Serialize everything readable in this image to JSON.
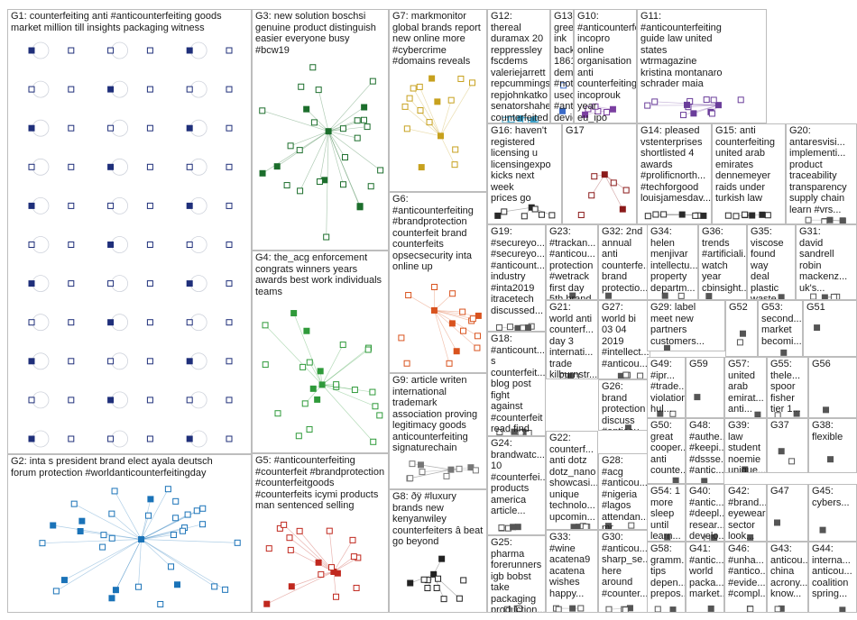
{
  "groups": [
    {
      "id": "G1",
      "text": "G1: counterfeiting anti #anticounterfeiting goods\nmarket million till insights packaging witness",
      "color": "#1f2f7a"
    },
    {
      "id": "G2",
      "text": "G2: inta s president brand elect ayala deutsch\nforum protection #worldanticounterfeitingday",
      "color": "#1a73b8"
    },
    {
      "id": "G3",
      "text": "G3: new solution boschsi\ngenuine product distinguish\neasier everyone busy\n#bcw19",
      "color": "#1c6e2c"
    },
    {
      "id": "G4",
      "text": "G4: the_acg enforcement\ncongrats winners years\nawards best work individuals\nteams",
      "color": "#2f9a3a"
    },
    {
      "id": "G5",
      "text": "G5: #anticounterfeiting\n#counterfeit #brandprotection\n#counterfeitgoods\n#counterfeits icymi products\nman sentenced selling",
      "color": "#c0281e"
    },
    {
      "id": "G6",
      "text": "G6:\n#anticounterfeiting\n#brandprotection\ncounterfeit brand\ncounterfeits\nopsecsecurity inta\nonline up",
      "color": "#d9531e"
    },
    {
      "id": "G7",
      "text": "G7: markmonitor\nglobal brands report\nnew online more\n#cybercrime\n#domains reveals",
      "color": "#c7a11e"
    },
    {
      "id": "G8",
      "text": "G8: ðÿ #luxury\nbrands new\nkenyanwiley\ncounterfeiters â beat\ngo beyond",
      "color": "#222222"
    },
    {
      "id": "G9",
      "text": "G9: article writen\ninternational\ntrademark\nassociation proving\nlegitimacy goods\nanticounterfeiting\nsignaturechain",
      "color": "#777777"
    },
    {
      "id": "G10",
      "text": "G10:\n#anticounterfeiting\nincopro online\norganisation anti\ncounterfeiting\nincoprouk year\neu_ipo announce",
      "color": "#7b3fa0"
    },
    {
      "id": "G11",
      "text": "G11:\n#anticounterfeiting\nguide law united\nstates\nwtrmagazine\nkristina montanaro\nschrader maia",
      "color": "#6a3d9a"
    },
    {
      "id": "G12",
      "text": "G12:\nthereal duramax 20\nreppressley\nfscdems\nvaleriejarrett\nrepcummings\nrepjohnkatko\nsenatorshaheen\ncounterfeited bill",
      "color": "#3aa0c8"
    },
    {
      "id": "G13",
      "text": "G13: green ink\nback 1861 demand\n#notes used\n#anticounterfeiting\ndevice photograph",
      "color": "#3a6bc8"
    },
    {
      "id": "G14",
      "text": "G14: pleased\nvstenterprises\nshortlisted 4\nawards\n#prolificnorth...\n#techforgood\nlouisjamesdav...",
      "color": "#2b2b2b"
    },
    {
      "id": "G15",
      "text": "G15: anti\ncounterfeiting\nunited arab\nemirates\ndennemeyer\nraids under\nturkish law",
      "color": "#2b2b2b"
    },
    {
      "id": "G16",
      "text": "G16: haven't\nregistered\nlicensing u\nlicensingexpo\nkicks next week\nprices go",
      "color": "#2b2b2b"
    },
    {
      "id": "G17",
      "text": "G17",
      "color": "#8b1a1a"
    },
    {
      "id": "G18",
      "text": "G18:\n#anticount...\ns\ncounterfeit...\nblog post\nfight against\n#counterfeit\nread find",
      "color": "#555555"
    },
    {
      "id": "G19",
      "text": "G19:\n#secureyo...\n#secureyo...\n#anticount...\nindustry\n#inta2019\nitracetech\ndiscussed...",
      "color": "#555555"
    },
    {
      "id": "G20",
      "text": "G20:\nantaresvisi...\nimplementi...\nproduct\ntraceability\ntransparency\nsupply chain\nlearn #vrs...",
      "color": "#555555"
    },
    {
      "id": "G21",
      "text": "G21:\nworld anti\ncounterf...\nday 3\ninternati...\ntrade\nkilburnstr...\ncounterf...",
      "color": "#555555"
    },
    {
      "id": "G22",
      "text": "G22:\ncounterf...\nanti dotz\ndotz_nano\nshowcasi...\nunique\ntechnolo...\nupcomin...",
      "color": "#555555"
    },
    {
      "id": "G23",
      "text": "G23:\n#trackan...\n#anticou...\nprotection\n#wetrack\nfirst day\n5th brand\nexcellen...",
      "color": "#555555"
    },
    {
      "id": "G24",
      "text": "G24:\nbrandwatc...\n10\n#counterfei...\nproducts\namerica\narticle...",
      "color": "#555555"
    },
    {
      "id": "G25",
      "text": "G25:\npharma\nforerunners\nigb bobst\ntake\npackaging\nproduction...",
      "color": "#555555"
    },
    {
      "id": "G26",
      "text": "G26:\nbrand\nprotection\ndiscuss\n#anticou...\n6th...",
      "color": "#555555"
    },
    {
      "id": "G27",
      "text": "G27:\nworld bi\n03 04\n2019\n#intellect...\n#anticou...",
      "color": "#555555"
    },
    {
      "id": "G28",
      "text": "G28: #acg\n#anticou...\n#nigeria\n#lagos\nattendan...\nmr...",
      "color": "#555555"
    },
    {
      "id": "G29",
      "text": "G29: label\nmeet new\npartners\ncustomers...",
      "color": "#555555"
    },
    {
      "id": "G30",
      "text": "G30:\n#anticou...\nsharp_se...\nhere\naround\n#counter...",
      "color": "#555555"
    },
    {
      "id": "G31",
      "text": "G31:\ndavid\nsandrell\nrobin\nmackenz...\nuk's...",
      "color": "#555555"
    },
    {
      "id": "G32",
      "text": "G32: 2nd\nannual\nanti\ncounterfe...\nbrand\nprotectio...",
      "color": "#555555"
    },
    {
      "id": "G33",
      "text": "G33:\n#wine\nacatena9\nacatena\nwishes\nhappy...",
      "color": "#555555"
    },
    {
      "id": "G34",
      "text": "G34:\nhelen\nmenjivar\nintellectu...\nproperty\ndepartm...",
      "color": "#555555"
    },
    {
      "id": "G35",
      "text": "G35:\nviscose\nfound way\ndeal\nplastic\nwaste...",
      "color": "#555555"
    },
    {
      "id": "G36",
      "text": "G36:\ntrends\n#artificiali...\nwatch\nyear\ncbinsight...",
      "color": "#555555"
    },
    {
      "id": "G37",
      "text": "G37",
      "color": "#555555"
    },
    {
      "id": "G38",
      "text": "G38:\nflexible",
      "color": "#555555"
    },
    {
      "id": "G39",
      "text": "G39:\nlaw\nstudent\nnoemie\nunique...",
      "color": "#555555"
    },
    {
      "id": "G40",
      "text": "G40:\n#antic...\n#deepl...\nresear...\ndevelo...",
      "color": "#555555"
    },
    {
      "id": "G41",
      "text": "G41:\n#antic...\nworld\npacka...\nmarket...",
      "color": "#555555"
    },
    {
      "id": "G42",
      "text": "G42:\n#brand...\neyewear\nsector\nlook...",
      "color": "#555555"
    },
    {
      "id": "G43",
      "text": "G43:\nanticou...\nchina\nacrony...\nknow...",
      "color": "#555555"
    },
    {
      "id": "G44",
      "text": "G44:\ninterna...\nanticou...\ncoalition\nspring...",
      "color": "#555555"
    },
    {
      "id": "G45",
      "text": "G45:\ncybers...",
      "color": "#555555"
    },
    {
      "id": "G46",
      "text": "G46:\n#unha...\n#antico...\n#evide...\n#compl...",
      "color": "#555555"
    },
    {
      "id": "G47",
      "text": "G47",
      "color": "#555555"
    },
    {
      "id": "G48",
      "text": "G48:\n#authe...\n#keepi...\n#dssse...\n#antic...",
      "color": "#555555"
    },
    {
      "id": "G49",
      "text": "G49:\n#ipr...\n#trade...\nviolation\nhul...",
      "color": "#555555"
    },
    {
      "id": "G50",
      "text": "G50:\ngreat\ncooper...\nanti\ncounte...",
      "color": "#555555"
    },
    {
      "id": "G51",
      "text": "G51",
      "color": "#555555"
    },
    {
      "id": "G52",
      "text": "G52",
      "color": "#555555"
    },
    {
      "id": "G53",
      "text": "G53:\nsecond...\nmarket\nbecomi...",
      "color": "#555555"
    },
    {
      "id": "G54",
      "text": "G54: 1\nmore\nsleep\nuntil\nlearn...",
      "color": "#555555"
    },
    {
      "id": "G55",
      "text": "G55:\nthele...\nspoor\nfisher\ntier 1...",
      "color": "#555555"
    },
    {
      "id": "G56",
      "text": "G56",
      "color": "#555555"
    },
    {
      "id": "G57",
      "text": "G57:\nunited\narab\nemirat...\nanti...",
      "color": "#555555"
    },
    {
      "id": "G58",
      "text": "G58:\ngramm...\ntips\ndepen...\nprepos...",
      "color": "#555555"
    },
    {
      "id": "G59",
      "text": "G59",
      "color": "#555555"
    }
  ]
}
